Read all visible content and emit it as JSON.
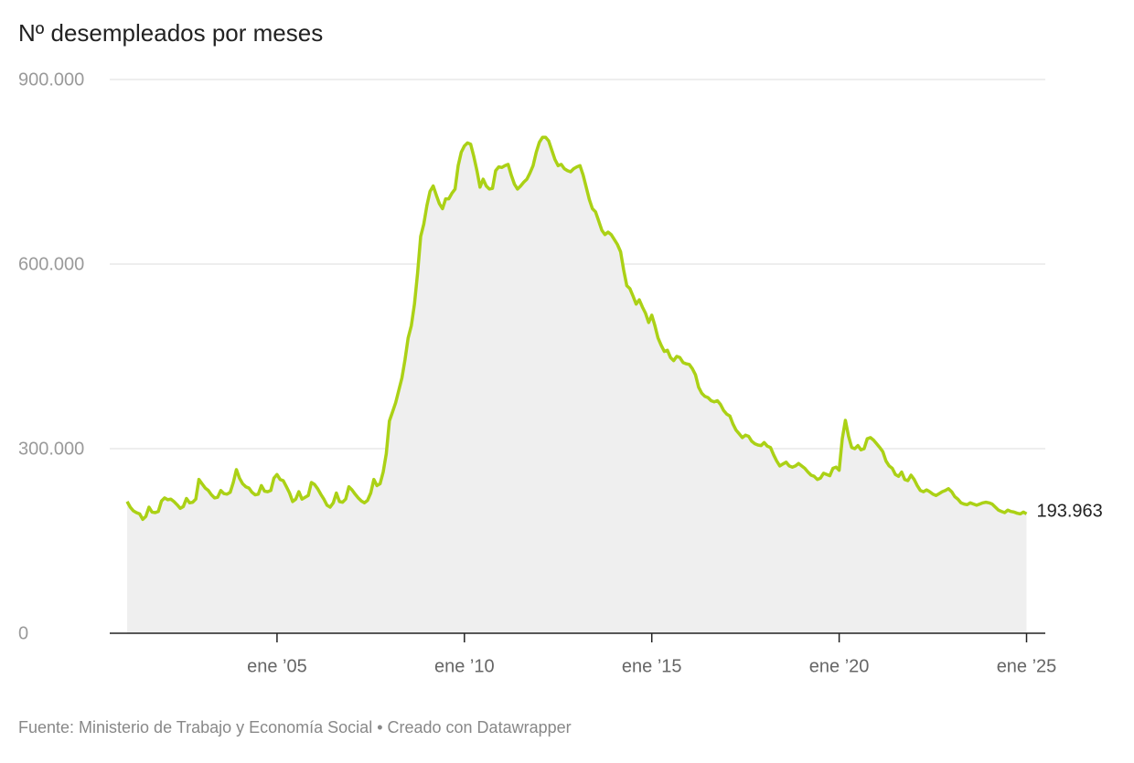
{
  "chart_data": {
    "type": "line",
    "title": "Nº desempleados por meses",
    "source": "Fuente: Ministerio de Trabajo y Economía Social • Creado con Datawrapper",
    "color": "#abd116",
    "area_color": "#efefef",
    "grid": true,
    "ylim": [
      0,
      900000
    ],
    "yticks": [
      0,
      {
        "value": 300000,
        "label": "300.000"
      },
      {
        "value": 600000,
        "label": "600.000"
      },
      {
        "value": 900000,
        "label": "900.000"
      }
    ],
    "xlim": [
      "2000-07",
      "2025-07"
    ],
    "xticks": [
      {
        "value": "2005-01",
        "label": "ene ’05"
      },
      {
        "value": "2010-01",
        "label": "ene ’10"
      },
      {
        "value": "2015-01",
        "label": "ene ’15"
      },
      {
        "value": "2020-01",
        "label": "ene ’20"
      },
      {
        "value": "2025-01",
        "label": "ene ’25"
      }
    ],
    "x": [
      "2001-01",
      "2001-02",
      "2001-03",
      "2001-04",
      "2001-05",
      "2001-06",
      "2001-07",
      "2001-08",
      "2001-09",
      "2001-10",
      "2001-11",
      "2001-12",
      "2002-01",
      "2002-02",
      "2002-03",
      "2002-04",
      "2002-05",
      "2002-06",
      "2002-07",
      "2002-08",
      "2002-09",
      "2002-10",
      "2002-11",
      "2002-12",
      "2003-01",
      "2003-02",
      "2003-03",
      "2003-04",
      "2003-05",
      "2003-06",
      "2003-07",
      "2003-08",
      "2003-09",
      "2003-10",
      "2003-11",
      "2003-12",
      "2004-01",
      "2004-02",
      "2004-03",
      "2004-04",
      "2004-05",
      "2004-06",
      "2004-07",
      "2004-08",
      "2004-09",
      "2004-10",
      "2004-11",
      "2004-12",
      "2005-01",
      "2005-02",
      "2005-03",
      "2005-04",
      "2005-05",
      "2005-06",
      "2005-07",
      "2005-08",
      "2005-09",
      "2005-10",
      "2005-11",
      "2005-12",
      "2006-01",
      "2006-02",
      "2006-03",
      "2006-04",
      "2006-05",
      "2006-06",
      "2006-07",
      "2006-08",
      "2006-09",
      "2006-10",
      "2006-11",
      "2006-12",
      "2007-01",
      "2007-02",
      "2007-03",
      "2007-04",
      "2007-05",
      "2007-06",
      "2007-07",
      "2007-08",
      "2007-09",
      "2007-10",
      "2007-11",
      "2007-12",
      "2008-01",
      "2008-02",
      "2008-03",
      "2008-04",
      "2008-05",
      "2008-06",
      "2008-07",
      "2008-08",
      "2008-09",
      "2008-10",
      "2008-11",
      "2008-12",
      "2009-01",
      "2009-02",
      "2009-03",
      "2009-04",
      "2009-05",
      "2009-06",
      "2009-07",
      "2009-08",
      "2009-09",
      "2009-10",
      "2009-11",
      "2009-12",
      "2010-01",
      "2010-02",
      "2010-03",
      "2010-04",
      "2010-05",
      "2010-06",
      "2010-07",
      "2010-08",
      "2010-09",
      "2010-10",
      "2010-11",
      "2010-12",
      "2011-01",
      "2011-02",
      "2011-03",
      "2011-04",
      "2011-05",
      "2011-06",
      "2011-07",
      "2011-08",
      "2011-09",
      "2011-10",
      "2011-11",
      "2011-12",
      "2012-01",
      "2012-02",
      "2012-03",
      "2012-04",
      "2012-05",
      "2012-06",
      "2012-07",
      "2012-08",
      "2012-09",
      "2012-10",
      "2012-11",
      "2012-12",
      "2013-01",
      "2013-02",
      "2013-03",
      "2013-04",
      "2013-05",
      "2013-06",
      "2013-07",
      "2013-08",
      "2013-09",
      "2013-10",
      "2013-11",
      "2013-12",
      "2014-01",
      "2014-02",
      "2014-03",
      "2014-04",
      "2014-05",
      "2014-06",
      "2014-07",
      "2014-08",
      "2014-09",
      "2014-10",
      "2014-11",
      "2014-12",
      "2015-01",
      "2015-02",
      "2015-03",
      "2015-04",
      "2015-05",
      "2015-06",
      "2015-07",
      "2015-08",
      "2015-09",
      "2015-10",
      "2015-11",
      "2015-12",
      "2016-01",
      "2016-02",
      "2016-03",
      "2016-04",
      "2016-05",
      "2016-06",
      "2016-07",
      "2016-08",
      "2016-09",
      "2016-10",
      "2016-11",
      "2016-12",
      "2017-01",
      "2017-02",
      "2017-03",
      "2017-04",
      "2017-05",
      "2017-06",
      "2017-07",
      "2017-08",
      "2017-09",
      "2017-10",
      "2017-11",
      "2017-12",
      "2018-01",
      "2018-02",
      "2018-03",
      "2018-04",
      "2018-05",
      "2018-06",
      "2018-07",
      "2018-08",
      "2018-09",
      "2018-10",
      "2018-11",
      "2018-12",
      "2019-01",
      "2019-02",
      "2019-03",
      "2019-04",
      "2019-05",
      "2019-06",
      "2019-07",
      "2019-08",
      "2019-09",
      "2019-10",
      "2019-11",
      "2019-12",
      "2020-01",
      "2020-02",
      "2020-03",
      "2020-04",
      "2020-05",
      "2020-06",
      "2020-07",
      "2020-08",
      "2020-09",
      "2020-10",
      "2020-11",
      "2020-12",
      "2021-01",
      "2021-02",
      "2021-03",
      "2021-04",
      "2021-05",
      "2021-06",
      "2021-07",
      "2021-08",
      "2021-09",
      "2021-10",
      "2021-11",
      "2021-12",
      "2022-01",
      "2022-02",
      "2022-03",
      "2022-04",
      "2022-05",
      "2022-06",
      "2022-07",
      "2022-08",
      "2022-09",
      "2022-10",
      "2022-11",
      "2022-12",
      "2023-01",
      "2023-02",
      "2023-03",
      "2023-04",
      "2023-05",
      "2023-06",
      "2023-07",
      "2023-08",
      "2023-09",
      "2023-10",
      "2023-11",
      "2023-12",
      "2024-01",
      "2024-02",
      "2024-03",
      "2024-04",
      "2024-05",
      "2024-06",
      "2024-07",
      "2024-08",
      "2024-09",
      "2024-10",
      "2024-11",
      "2024-12",
      "2025-01"
    ],
    "values": [
      214000,
      205000,
      199000,
      196000,
      194000,
      185000,
      190000,
      205000,
      197000,
      196000,
      198000,
      215000,
      220000,
      217000,
      218000,
      214000,
      209000,
      203000,
      206000,
      219000,
      212000,
      213000,
      218000,
      250000,
      243000,
      236000,
      232000,
      225000,
      220000,
      221000,
      232000,
      227000,
      226000,
      229000,
      245000,
      266000,
      252000,
      243000,
      238000,
      236000,
      229000,
      225000,
      226000,
      240000,
      231000,
      230000,
      232000,
      252000,
      258000,
      250000,
      248000,
      238000,
      228000,
      214000,
      218000,
      230000,
      218000,
      221000,
      224000,
      245000,
      242000,
      235000,
      226000,
      218000,
      208000,
      205000,
      212000,
      228000,
      214000,
      213000,
      218000,
      238000,
      233000,
      226000,
      220000,
      215000,
      212000,
      216000,
      228000,
      250000,
      240000,
      243000,
      262000,
      292000,
      345000,
      360000,
      375000,
      395000,
      415000,
      445000,
      480000,
      500000,
      535000,
      585000,
      645000,
      665000,
      695000,
      718000,
      727000,
      712000,
      698000,
      690000,
      706000,
      706000,
      715000,
      722000,
      760000,
      782000,
      792000,
      797000,
      795000,
      775000,
      752000,
      725000,
      738000,
      727000,
      722000,
      723000,
      752000,
      758000,
      757000,
      760000,
      762000,
      745000,
      730000,
      722000,
      727000,
      733000,
      738000,
      748000,
      760000,
      782000,
      798000,
      806000,
      806000,
      800000,
      785000,
      770000,
      760000,
      762000,
      755000,
      752000,
      750000,
      755000,
      758000,
      760000,
      745000,
      725000,
      705000,
      690000,
      685000,
      670000,
      655000,
      648000,
      652000,
      648000,
      640000,
      632000,
      620000,
      590000,
      565000,
      560000,
      548000,
      535000,
      542000,
      530000,
      520000,
      505000,
      517000,
      500000,
      480000,
      468000,
      458000,
      460000,
      448000,
      443000,
      450000,
      448000,
      440000,
      438000,
      437000,
      430000,
      420000,
      400000,
      390000,
      385000,
      383000,
      378000,
      376000,
      378000,
      372000,
      362000,
      356000,
      353000,
      340000,
      330000,
      324000,
      318000,
      322000,
      320000,
      312000,
      308000,
      306000,
      305000,
      310000,
      304000,
      302000,
      290000,
      280000,
      272000,
      275000,
      278000,
      272000,
      270000,
      272000,
      276000,
      272000,
      268000,
      262000,
      257000,
      255000,
      250000,
      252000,
      260000,
      258000,
      256000,
      268000,
      270000,
      265000,
      316000,
      346000,
      320000,
      302000,
      300000,
      305000,
      298000,
      300000,
      316000,
      318000,
      314000,
      308000,
      302000,
      295000,
      280000,
      272000,
      268000,
      258000,
      255000,
      262000,
      250000,
      248000,
      257000,
      250000,
      240000,
      232000,
      230000,
      233000,
      230000,
      226000,
      224000,
      227000,
      230000,
      232000,
      235000,
      230000,
      222000,
      218000,
      212000,
      210000,
      209000,
      212000,
      210000,
      208000,
      210000,
      212000,
      213000,
      212000,
      210000,
      205000,
      200000,
      198000,
      196000,
      200000,
      198000,
      197000,
      195000,
      194000,
      197000,
      193963
    ],
    "end_label": {
      "index": 288,
      "label": "193.963"
    }
  }
}
